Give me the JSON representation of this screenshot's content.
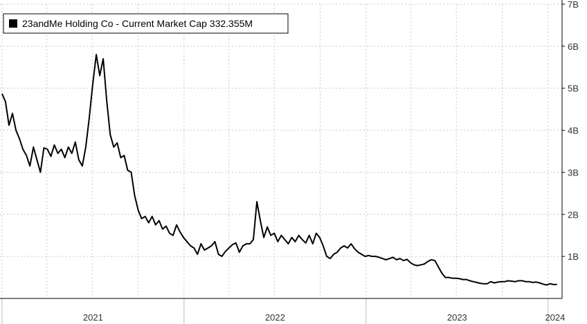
{
  "chart_data": {
    "type": "line",
    "title": "",
    "xlabel": "",
    "ylabel": "",
    "x_unit": "date",
    "x_tick_labels": [
      "2021",
      "2022",
      "2023",
      "2024"
    ],
    "y_tick_labels": [
      "1B",
      "2B",
      "3B",
      "4B",
      "5B",
      "6B",
      "7B"
    ],
    "y_ticks": [
      1,
      2,
      3,
      4,
      5,
      6,
      7
    ],
    "ylim": [
      0,
      7
    ],
    "xlim": [
      "2020-12-28",
      "2024-01-29"
    ],
    "grid": true,
    "legend_position": "top-left",
    "series": [
      {
        "name": "23andMe Holding Co - Current Market Cap 332.355M",
        "color": "#000000",
        "x": [
          "2021-01-01",
          "2021-01-08",
          "2021-01-15",
          "2021-01-22",
          "2021-01-29",
          "2021-02-05",
          "2021-02-12",
          "2021-02-19",
          "2021-02-26",
          "2021-03-05",
          "2021-03-12",
          "2021-03-19",
          "2021-03-26",
          "2021-04-02",
          "2021-04-09",
          "2021-04-16",
          "2021-04-23",
          "2021-04-30",
          "2021-05-07",
          "2021-05-14",
          "2021-05-21",
          "2021-05-28",
          "2021-06-04",
          "2021-06-11",
          "2021-06-18",
          "2021-06-25",
          "2021-07-02",
          "2021-07-09",
          "2021-07-16",
          "2021-07-23",
          "2021-07-30",
          "2021-08-06",
          "2021-08-13",
          "2021-08-20",
          "2021-08-27",
          "2021-09-03",
          "2021-09-10",
          "2021-09-17",
          "2021-09-24",
          "2021-10-01",
          "2021-10-08",
          "2021-10-15",
          "2021-10-22",
          "2021-10-29",
          "2021-11-05",
          "2021-11-12",
          "2021-11-19",
          "2021-11-26",
          "2021-12-03",
          "2021-12-10",
          "2021-12-17",
          "2021-12-24",
          "2021-12-31",
          "2022-01-07",
          "2022-01-14",
          "2022-01-21",
          "2022-01-28",
          "2022-02-04",
          "2022-02-11",
          "2022-02-18",
          "2022-02-25",
          "2022-03-04",
          "2022-03-11",
          "2022-03-18",
          "2022-03-25",
          "2022-04-01",
          "2022-04-08",
          "2022-04-15",
          "2022-04-22",
          "2022-04-29",
          "2022-05-06",
          "2022-05-13",
          "2022-05-20",
          "2022-05-27",
          "2022-06-03",
          "2022-06-10",
          "2022-06-17",
          "2022-06-24",
          "2022-07-01",
          "2022-07-08",
          "2022-07-15",
          "2022-07-22",
          "2022-07-29",
          "2022-08-05",
          "2022-08-12",
          "2022-08-19",
          "2022-08-26",
          "2022-09-02",
          "2022-09-09",
          "2022-09-16",
          "2022-09-23",
          "2022-09-30",
          "2022-10-07",
          "2022-10-14",
          "2022-10-21",
          "2022-10-28",
          "2022-11-04",
          "2022-11-11",
          "2022-11-18",
          "2022-11-25",
          "2022-12-02",
          "2022-12-09",
          "2022-12-16",
          "2022-12-23",
          "2022-12-30",
          "2023-01-06",
          "2023-01-13",
          "2023-01-20",
          "2023-01-27",
          "2023-02-03",
          "2023-02-10",
          "2023-02-17",
          "2023-02-24",
          "2023-03-03",
          "2023-03-10",
          "2023-03-17",
          "2023-03-24",
          "2023-03-31",
          "2023-04-07",
          "2023-04-14",
          "2023-04-21",
          "2023-04-28",
          "2023-05-05",
          "2023-05-12",
          "2023-05-19",
          "2023-05-26",
          "2023-06-02",
          "2023-06-09",
          "2023-06-16",
          "2023-06-23",
          "2023-06-30",
          "2023-07-07",
          "2023-07-14",
          "2023-07-21",
          "2023-07-28",
          "2023-08-04",
          "2023-08-11",
          "2023-08-18",
          "2023-08-25",
          "2023-09-01",
          "2023-09-08",
          "2023-09-15",
          "2023-09-22",
          "2023-09-29",
          "2023-10-06",
          "2023-10-13",
          "2023-10-20",
          "2023-10-27",
          "2023-11-03",
          "2023-11-10",
          "2023-11-17",
          "2023-11-24",
          "2023-12-01",
          "2023-12-08",
          "2023-12-15",
          "2023-12-22",
          "2023-12-29",
          "2024-01-05",
          "2024-01-12",
          "2024-01-19"
        ],
        "values": [
          4.87,
          4.68,
          4.12,
          4.4,
          4.0,
          3.8,
          3.55,
          3.4,
          3.15,
          3.6,
          3.3,
          3.0,
          3.58,
          3.55,
          3.38,
          3.65,
          3.45,
          3.55,
          3.35,
          3.6,
          3.45,
          3.72,
          3.3,
          3.15,
          3.6,
          4.3,
          5.1,
          5.8,
          5.3,
          5.7,
          4.7,
          3.9,
          3.6,
          3.7,
          3.35,
          3.4,
          3.05,
          3.0,
          2.45,
          2.1,
          1.9,
          1.95,
          1.8,
          1.95,
          1.75,
          1.85,
          1.65,
          1.72,
          1.55,
          1.5,
          1.75,
          1.58,
          1.45,
          1.35,
          1.25,
          1.2,
          1.05,
          1.3,
          1.15,
          1.2,
          1.25,
          1.35,
          1.05,
          1.0,
          1.12,
          1.2,
          1.28,
          1.32,
          1.1,
          1.25,
          1.3,
          1.3,
          1.4,
          2.3,
          1.85,
          1.45,
          1.7,
          1.5,
          1.55,
          1.35,
          1.5,
          1.4,
          1.3,
          1.45,
          1.35,
          1.5,
          1.4,
          1.32,
          1.5,
          1.3,
          1.55,
          1.45,
          1.25,
          1.0,
          0.95,
          1.05,
          1.1,
          1.2,
          1.25,
          1.2,
          1.3,
          1.18,
          1.1,
          1.05,
          1.0,
          1.02,
          1.0,
          1.0,
          0.98,
          0.95,
          0.92,
          0.95,
          0.98,
          0.92,
          0.95,
          0.9,
          0.93,
          0.85,
          0.8,
          0.78,
          0.8,
          0.82,
          0.88,
          0.92,
          0.9,
          0.75,
          0.6,
          0.5,
          0.5,
          0.48,
          0.48,
          0.47,
          0.45,
          0.45,
          0.42,
          0.4,
          0.38,
          0.36,
          0.35,
          0.35,
          0.4,
          0.37,
          0.39,
          0.4,
          0.4,
          0.42,
          0.41,
          0.4,
          0.42,
          0.42,
          0.4,
          0.4,
          0.38,
          0.39,
          0.37,
          0.34,
          0.32,
          0.35,
          0.33,
          0.332
        ]
      }
    ]
  }
}
